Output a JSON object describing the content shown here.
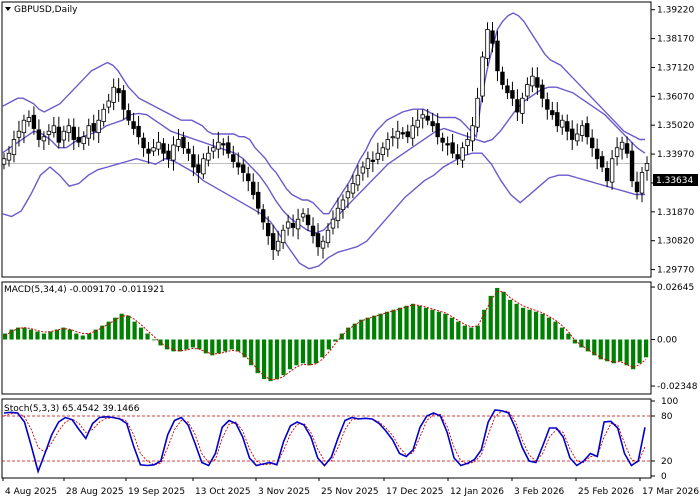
{
  "chart_data": [
    {
      "type": "candlestick",
      "title": "GBPUSD,Daily",
      "indicator": "Bollinger Bands",
      "ylim": [
        1.295,
        1.395
      ],
      "y_ticks": [
        "1.39220",
        "1.38170",
        "1.37120",
        "1.36070",
        "1.35020",
        "1.33970",
        "1.32920",
        "1.31870",
        "1.30820",
        "1.29770"
      ],
      "current_price": "1.33634",
      "close": [
        1.338,
        1.34,
        1.345,
        1.348,
        1.352,
        1.353,
        1.349,
        1.345,
        1.346,
        1.348,
        1.35,
        1.344,
        1.348,
        1.35,
        1.345,
        1.344,
        1.346,
        1.35,
        1.348,
        1.352,
        1.356,
        1.359,
        1.364,
        1.362,
        1.356,
        1.352,
        1.349,
        1.346,
        1.342,
        1.34,
        1.342,
        1.344,
        1.34,
        1.338,
        1.343,
        1.345,
        1.342,
        1.34,
        1.335,
        1.333,
        1.338,
        1.34,
        1.342,
        1.344,
        1.343,
        1.34,
        1.337,
        1.335,
        1.333,
        1.33,
        1.325,
        1.32,
        1.315,
        1.31,
        1.305,
        1.308,
        1.312,
        1.315,
        1.313,
        1.316,
        1.318,
        1.314,
        1.31,
        1.306,
        1.308,
        1.312,
        1.316,
        1.32,
        1.323,
        1.326,
        1.329,
        1.332,
        1.335,
        1.338,
        1.337,
        1.34,
        1.342,
        1.345,
        1.346,
        1.348,
        1.347,
        1.346,
        1.35,
        1.352,
        1.354,
        1.352,
        1.35,
        1.346,
        1.344,
        1.343,
        1.34,
        1.338,
        1.342,
        1.345,
        1.35,
        1.36,
        1.375,
        1.385,
        1.38,
        1.37,
        1.365,
        1.362,
        1.36,
        1.355,
        1.36,
        1.365,
        1.368,
        1.364,
        1.36,
        1.356,
        1.354,
        1.35,
        1.352,
        1.348,
        1.345,
        1.347,
        1.35,
        1.346,
        1.342,
        1.338,
        1.335,
        1.33,
        1.338,
        1.342,
        1.344,
        1.34,
        1.33,
        1.326,
        1.333,
        1.3363
      ],
      "bb_upper": [
        1.357,
        1.358,
        1.359,
        1.36,
        1.36,
        1.359,
        1.358,
        1.356,
        1.355,
        1.356,
        1.357,
        1.358,
        1.36,
        1.362,
        1.364,
        1.366,
        1.368,
        1.37,
        1.371,
        1.372,
        1.373,
        1.372,
        1.37,
        1.367,
        1.364,
        1.362,
        1.36,
        1.359,
        1.358,
        1.357,
        1.356,
        1.355,
        1.354,
        1.353,
        1.352,
        1.352,
        1.352,
        1.351,
        1.35,
        1.348,
        1.347,
        1.347,
        1.347,
        1.347,
        1.347,
        1.346,
        1.346,
        1.345,
        1.342,
        1.34,
        1.338,
        1.335,
        1.333,
        1.33,
        1.327,
        1.325,
        1.324,
        1.323,
        1.323,
        1.322,
        1.32,
        1.318,
        1.318,
        1.321,
        1.324,
        1.327,
        1.33,
        1.334,
        1.338,
        1.341,
        1.345,
        1.348,
        1.35,
        1.352,
        1.353,
        1.354,
        1.355,
        1.3555,
        1.356,
        1.356,
        1.356,
        1.355,
        1.354,
        1.353,
        1.353,
        1.353,
        1.353,
        1.352,
        1.35,
        1.348,
        1.346,
        1.36,
        1.37,
        1.378,
        1.385,
        1.388,
        1.39,
        1.391,
        1.39,
        1.388,
        1.385,
        1.382,
        1.379,
        1.376,
        1.374,
        1.373,
        1.372,
        1.37,
        1.368,
        1.366,
        1.364,
        1.362,
        1.36,
        1.358,
        1.356,
        1.354,
        1.352,
        1.35,
        1.348,
        1.347,
        1.346,
        1.345,
        1.345
      ],
      "bb_middle": [
        1.34,
        1.342,
        1.344,
        1.346,
        1.348,
        1.347,
        1.345,
        1.342,
        1.342,
        1.344,
        1.346,
        1.347,
        1.348,
        1.35,
        1.351,
        1.352,
        1.354,
        1.3545,
        1.354,
        1.352,
        1.35,
        1.348,
        1.347,
        1.346,
        1.345,
        1.344,
        1.343,
        1.342,
        1.341,
        1.34,
        1.338,
        1.335,
        1.332,
        1.328,
        1.323,
        1.319,
        1.316,
        1.314,
        1.312,
        1.311,
        1.312,
        1.315,
        1.318,
        1.321,
        1.324,
        1.327,
        1.33,
        1.333,
        1.336,
        1.338,
        1.34,
        1.342,
        1.344,
        1.346,
        1.348,
        1.349,
        1.348,
        1.347,
        1.346,
        1.345,
        1.344,
        1.345,
        1.348,
        1.352,
        1.356,
        1.359,
        1.361,
        1.363,
        1.364,
        1.364,
        1.363,
        1.362,
        1.36,
        1.358,
        1.356,
        1.354,
        1.351,
        1.348,
        1.345,
        1.342,
        1.34
      ],
      "bb_lower": [
        1.318,
        1.317,
        1.319,
        1.325,
        1.332,
        1.335,
        1.332,
        1.328,
        1.329,
        1.332,
        1.334,
        1.335,
        1.336,
        1.337,
        1.338,
        1.337,
        1.336,
        1.338,
        1.337,
        1.335,
        1.333,
        1.33,
        1.328,
        1.326,
        1.324,
        1.322,
        1.32,
        1.318,
        1.315,
        1.31,
        1.305,
        1.3,
        1.298,
        1.299,
        1.302,
        1.304,
        1.305,
        1.306,
        1.308,
        1.312,
        1.316,
        1.32,
        1.324,
        1.327,
        1.33,
        1.332,
        1.335,
        1.337,
        1.339,
        1.34,
        1.34,
        1.336,
        1.33,
        1.325,
        1.322,
        1.325,
        1.328,
        1.331,
        1.332,
        1.332,
        1.331,
        1.33,
        1.329,
        1.328,
        1.327,
        1.326,
        1.325,
        1.325
      ]
    },
    {
      "type": "bar",
      "title": "MACD(5,34,4) -0.009170 -0.011921",
      "ylim": [
        -0.0275,
        0.029
      ],
      "y_ticks": [
        "0.02645",
        "0.00",
        "-0.02348"
      ],
      "values": [
        0.003,
        0.005,
        0.006,
        0.006,
        0.005,
        0.004,
        0.003,
        0.004,
        0.005,
        0.006,
        0.005,
        0.003,
        0.002,
        0.003,
        0.005,
        0.007,
        0.009,
        0.011,
        0.013,
        0.012,
        0.009,
        0.006,
        0.003,
        0.0,
        -0.003,
        -0.005,
        -0.006,
        -0.006,
        -0.005,
        -0.004,
        -0.005,
        -0.007,
        -0.008,
        -0.007,
        -0.006,
        -0.005,
        -0.006,
        -0.009,
        -0.013,
        -0.017,
        -0.02,
        -0.021,
        -0.02,
        -0.018,
        -0.015,
        -0.013,
        -0.012,
        -0.013,
        -0.012,
        -0.009,
        -0.005,
        -0.001,
        0.003,
        0.006,
        0.008,
        0.01,
        0.011,
        0.012,
        0.013,
        0.014,
        0.015,
        0.016,
        0.017,
        0.018,
        0.017,
        0.016,
        0.015,
        0.014,
        0.013,
        0.011,
        0.009,
        0.007,
        0.006,
        0.007,
        0.015,
        0.022,
        0.026,
        0.024,
        0.02,
        0.018,
        0.016,
        0.015,
        0.014,
        0.013,
        0.011,
        0.009,
        0.006,
        0.003,
        -0.002,
        -0.004,
        -0.006,
        -0.008,
        -0.01,
        -0.011,
        -0.012,
        -0.011,
        -0.013,
        -0.015,
        -0.012,
        -0.009
      ],
      "signal": [
        0.002,
        0.004,
        0.0055,
        0.006,
        0.0055,
        0.0045,
        0.0038,
        0.004,
        0.0047,
        0.0055,
        0.0052,
        0.004,
        0.003,
        0.003,
        0.0042,
        0.006,
        0.0078,
        0.0098,
        0.0118,
        0.012,
        0.0102,
        0.0075,
        0.0045,
        0.0015,
        -0.0015,
        -0.0038,
        -0.0052,
        -0.0058,
        -0.0053,
        -0.0045,
        -0.0048,
        -0.0062,
        -0.0073,
        -0.0071,
        -0.0064,
        -0.0055,
        -0.0058,
        -0.008,
        -0.0112,
        -0.015,
        -0.0184,
        -0.0202,
        -0.0201,
        -0.0187,
        -0.0162,
        -0.0139,
        -0.0125,
        -0.0128,
        -0.0123,
        -0.01,
        -0.0064,
        -0.0022,
        0.0018,
        0.005,
        0.0073,
        0.0093,
        0.0105,
        0.0115,
        0.0125,
        0.0135,
        0.0145,
        0.0155,
        0.0165,
        0.0175,
        0.0172,
        0.0164,
        0.0154,
        0.0144,
        0.0134,
        0.0116,
        0.0096,
        0.0076,
        0.0064,
        0.0068,
        0.0127,
        0.0194,
        0.0242,
        0.0241,
        0.0212,
        0.0189,
        0.017,
        0.0157,
        0.0146,
        0.0135,
        0.0117,
        0.0098,
        0.0071,
        0.004,
        -0.0004,
        -0.0029,
        -0.005,
        -0.0071,
        -0.0091,
        -0.0104,
        -0.0115,
        -0.0111,
        -0.0125,
        -0.0143,
        -0.0126,
        -0.0101
      ]
    },
    {
      "type": "line",
      "title": "Stoch(5,3,3) 65.4542 39.1466",
      "ylim": [
        0,
        100
      ],
      "y_ticks": [
        "100",
        "80",
        "20",
        "0"
      ],
      "levels": [
        80,
        20
      ],
      "series": [
        {
          "values": [
            84,
            85,
            84,
            72,
            40,
            6,
            30,
            55,
            72,
            78,
            75,
            62,
            50,
            70,
            78,
            79,
            78,
            76,
            70,
            40,
            15,
            14,
            15,
            20,
            55,
            74,
            78,
            68,
            44,
            18,
            14,
            30,
            65,
            74,
            70,
            52,
            24,
            14,
            16,
            18,
            15,
            46,
            67,
            72,
            68,
            52,
            24,
            14,
            25,
            51,
            74,
            78,
            76,
            77,
            76,
            70,
            60,
            48,
            30,
            26,
            35,
            65,
            80,
            84,
            80,
            58,
            24,
            14,
            17,
            22,
            35,
            72,
            88,
            87,
            84,
            64,
            38,
            20,
            18,
            40,
            64,
            64,
            52,
            24,
            14,
            20,
            30,
            26,
            72,
            73,
            64,
            30,
            14,
            20,
            65
          ]
        },
        {
          "values": [
            80,
            83,
            84,
            79,
            62,
            38,
            32,
            44,
            60,
            72,
            76,
            70,
            58,
            62,
            72,
            77,
            78,
            77,
            73,
            55,
            30,
            20,
            15,
            17,
            38,
            62,
            74,
            72,
            56,
            30,
            18,
            22,
            50,
            69,
            72,
            60,
            36,
            20,
            15,
            16,
            16,
            34,
            56,
            69,
            70,
            58,
            36,
            20,
            20,
            38,
            62,
            75,
            77,
            77,
            76,
            72,
            64,
            54,
            38,
            28,
            31,
            52,
            74,
            82,
            82,
            66,
            38,
            20,
            16,
            19,
            28,
            55,
            79,
            87,
            86,
            72,
            48,
            28,
            20,
            30,
            52,
            62,
            58,
            36,
            20,
            18,
            26,
            27,
            52,
            70,
            68,
            44,
            22,
            18,
            39
          ]
        }
      ]
    }
  ],
  "x_axis_labels": [
    "4 Aug 2025",
    "28 Aug 2025",
    "19 Sep 2025",
    "13 Oct 2025",
    "3 Nov 2025",
    "25 Nov 2025",
    "17 Dec 2025",
    "12 Jan 2026",
    "3 Feb 2026",
    "25 Feb 2026",
    "17 Mar 2026"
  ],
  "colors": {
    "background": "#ffffff",
    "candle": "#000000",
    "bands": "#6a5acd",
    "macd_bars": "#008000",
    "macd_signal": "#cc0000",
    "stoch_main": "#0000cc",
    "stoch_signal": "#cc0000",
    "level_lines": "#c00000",
    "grid_border": "#000000"
  }
}
